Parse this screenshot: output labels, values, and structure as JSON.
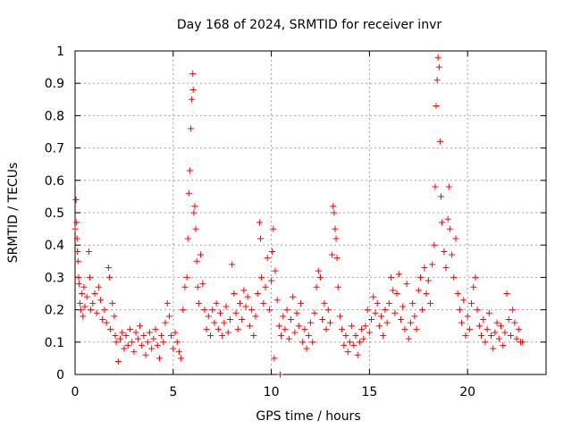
{
  "chart_data": {
    "type": "scatter",
    "title": "Day 168 of 2024, SRMTID for receiver invr",
    "xlabel": "GPS time / hours",
    "ylabel": "SRMTID / TECUs",
    "xlim": [
      0,
      24
    ],
    "ylim": [
      0,
      1
    ],
    "x_ticks": [
      0,
      5,
      10,
      15,
      20
    ],
    "y_ticks": [
      0,
      0.1,
      0.2,
      0.3,
      0.4,
      0.5,
      0.6,
      0.7,
      0.8,
      0.9,
      1
    ],
    "x_tick_labels": [
      "0",
      "5",
      "10",
      "15",
      "20"
    ],
    "y_tick_labels": [
      "0",
      "0.1",
      "0.2",
      "0.3",
      "0.4",
      "0.5",
      "0.6",
      "0.7",
      "0.8",
      "0.9",
      "1"
    ],
    "grid": true,
    "marker": "+",
    "color": "#ff0000",
    "series": [
      {
        "name": "SRMTID",
        "points": [
          [
            0.0,
            0.45
          ],
          [
            0.05,
            0.54
          ],
          [
            0.08,
            0.47
          ],
          [
            0.1,
            0.42
          ],
          [
            0.12,
            0.38
          ],
          [
            0.15,
            0.35
          ],
          [
            0.18,
            0.3
          ],
          [
            0.2,
            0.28
          ],
          [
            0.25,
            0.22
          ],
          [
            0.3,
            0.2
          ],
          [
            0.35,
            0.25
          ],
          [
            0.4,
            0.18
          ],
          [
            0.45,
            0.27
          ],
          [
            0.5,
            0.21
          ],
          [
            0.6,
            0.24
          ],
          [
            0.7,
            0.38
          ],
          [
            0.75,
            0.3
          ],
          [
            0.8,
            0.2
          ],
          [
            0.9,
            0.22
          ],
          [
            1.0,
            0.25
          ],
          [
            1.1,
            0.19
          ],
          [
            1.2,
            0.27
          ],
          [
            1.3,
            0.23
          ],
          [
            1.4,
            0.17
          ],
          [
            1.5,
            0.2
          ],
          [
            1.6,
            0.16
          ],
          [
            1.7,
            0.33
          ],
          [
            1.75,
            0.3
          ],
          [
            1.8,
            0.14
          ],
          [
            1.9,
            0.22
          ],
          [
            2.0,
            0.18
          ],
          [
            2.05,
            0.12
          ],
          [
            2.1,
            0.1
          ],
          [
            2.2,
            0.04
          ],
          [
            2.3,
            0.11
          ],
          [
            2.4,
            0.13
          ],
          [
            2.5,
            0.08
          ],
          [
            2.6,
            0.12
          ],
          [
            2.7,
            0.09
          ],
          [
            2.8,
            0.14
          ],
          [
            2.9,
            0.1
          ],
          [
            3.0,
            0.07
          ],
          [
            3.1,
            0.13
          ],
          [
            3.2,
            0.11
          ],
          [
            3.3,
            0.15
          ],
          [
            3.4,
            0.09
          ],
          [
            3.5,
            0.12
          ],
          [
            3.6,
            0.06
          ],
          [
            3.7,
            0.1
          ],
          [
            3.8,
            0.13
          ],
          [
            3.9,
            0.08
          ],
          [
            4.0,
            0.11
          ],
          [
            4.1,
            0.14
          ],
          [
            4.2,
            0.09
          ],
          [
            4.3,
            0.05
          ],
          [
            4.4,
            0.12
          ],
          [
            4.5,
            0.1
          ],
          [
            4.6,
            0.16
          ],
          [
            4.7,
            0.22
          ],
          [
            4.8,
            0.18
          ],
          [
            4.9,
            0.12
          ],
          [
            5.0,
            0.08
          ],
          [
            5.1,
            0.13
          ],
          [
            5.2,
            0.1
          ],
          [
            5.3,
            0.07
          ],
          [
            5.4,
            0.05
          ],
          [
            5.5,
            0.2
          ],
          [
            5.6,
            0.27
          ],
          [
            5.7,
            0.3
          ],
          [
            5.75,
            0.42
          ],
          [
            5.8,
            0.56
          ],
          [
            5.85,
            0.63
          ],
          [
            5.9,
            0.76
          ],
          [
            5.95,
            0.85
          ],
          [
            6.0,
            0.93
          ],
          [
            6.02,
            0.88
          ],
          [
            6.05,
            0.5
          ],
          [
            6.1,
            0.52
          ],
          [
            6.15,
            0.45
          ],
          [
            6.2,
            0.35
          ],
          [
            6.25,
            0.27
          ],
          [
            6.3,
            0.22
          ],
          [
            6.4,
            0.37
          ],
          [
            6.5,
            0.28
          ],
          [
            6.6,
            0.2
          ],
          [
            6.7,
            0.14
          ],
          [
            6.8,
            0.18
          ],
          [
            6.9,
            0.12
          ],
          [
            7.0,
            0.2
          ],
          [
            7.1,
            0.16
          ],
          [
            7.2,
            0.22
          ],
          [
            7.3,
            0.14
          ],
          [
            7.4,
            0.19
          ],
          [
            7.5,
            0.12
          ],
          [
            7.6,
            0.16
          ],
          [
            7.7,
            0.21
          ],
          [
            7.8,
            0.13
          ],
          [
            7.9,
            0.17
          ],
          [
            8.0,
            0.34
          ],
          [
            8.1,
            0.25
          ],
          [
            8.2,
            0.19
          ],
          [
            8.3,
            0.14
          ],
          [
            8.4,
            0.22
          ],
          [
            8.5,
            0.17
          ],
          [
            8.6,
            0.26
          ],
          [
            8.7,
            0.21
          ],
          [
            8.8,
            0.24
          ],
          [
            8.9,
            0.15
          ],
          [
            9.0,
            0.2
          ],
          [
            9.1,
            0.12
          ],
          [
            9.2,
            0.18
          ],
          [
            9.3,
            0.25
          ],
          [
            9.4,
            0.47
          ],
          [
            9.45,
            0.42
          ],
          [
            9.5,
            0.3
          ],
          [
            9.6,
            0.22
          ],
          [
            9.7,
            0.27
          ],
          [
            9.8,
            0.36
          ],
          [
            9.9,
            0.2
          ],
          [
            10.0,
            0.29
          ],
          [
            10.05,
            0.38
          ],
          [
            10.1,
            0.45
          ],
          [
            10.15,
            0.05
          ],
          [
            10.2,
            0.32
          ],
          [
            10.3,
            0.23
          ],
          [
            10.4,
            0.15
          ],
          [
            10.45,
            0.0
          ],
          [
            10.5,
            0.12
          ],
          [
            10.6,
            0.18
          ],
          [
            10.7,
            0.14
          ],
          [
            10.8,
            0.2
          ],
          [
            10.9,
            0.11
          ],
          [
            11.0,
            0.17
          ],
          [
            11.1,
            0.24
          ],
          [
            11.2,
            0.13
          ],
          [
            11.3,
            0.19
          ],
          [
            11.4,
            0.15
          ],
          [
            11.5,
            0.22
          ],
          [
            11.6,
            0.1
          ],
          [
            11.7,
            0.14
          ],
          [
            11.8,
            0.08
          ],
          [
            11.9,
            0.12
          ],
          [
            12.0,
            0.16
          ],
          [
            12.1,
            0.1
          ],
          [
            12.2,
            0.19
          ],
          [
            12.3,
            0.27
          ],
          [
            12.4,
            0.32
          ],
          [
            12.5,
            0.3
          ],
          [
            12.6,
            0.17
          ],
          [
            12.7,
            0.22
          ],
          [
            12.8,
            0.14
          ],
          [
            12.9,
            0.2
          ],
          [
            13.0,
            0.16
          ],
          [
            13.1,
            0.37
          ],
          [
            13.15,
            0.52
          ],
          [
            13.2,
            0.5
          ],
          [
            13.25,
            0.45
          ],
          [
            13.3,
            0.42
          ],
          [
            13.35,
            0.36
          ],
          [
            13.4,
            0.27
          ],
          [
            13.5,
            0.18
          ],
          [
            13.6,
            0.14
          ],
          [
            13.7,
            0.09
          ],
          [
            13.8,
            0.12
          ],
          [
            13.9,
            0.07
          ],
          [
            14.0,
            0.1
          ],
          [
            14.1,
            0.15
          ],
          [
            14.2,
            0.09
          ],
          [
            14.3,
            0.12
          ],
          [
            14.4,
            0.06
          ],
          [
            14.5,
            0.1
          ],
          [
            14.6,
            0.14
          ],
          [
            14.7,
            0.11
          ],
          [
            14.8,
            0.15
          ],
          [
            14.9,
            0.2
          ],
          [
            15.0,
            0.13
          ],
          [
            15.1,
            0.17
          ],
          [
            15.2,
            0.24
          ],
          [
            15.3,
            0.19
          ],
          [
            15.4,
            0.22
          ],
          [
            15.5,
            0.15
          ],
          [
            15.6,
            0.18
          ],
          [
            15.7,
            0.12
          ],
          [
            15.8,
            0.2
          ],
          [
            15.9,
            0.16
          ],
          [
            16.0,
            0.22
          ],
          [
            16.1,
            0.3
          ],
          [
            16.2,
            0.26
          ],
          [
            16.3,
            0.19
          ],
          [
            16.4,
            0.25
          ],
          [
            16.5,
            0.31
          ],
          [
            16.6,
            0.17
          ],
          [
            16.7,
            0.21
          ],
          [
            16.8,
            0.14
          ],
          [
            16.9,
            0.28
          ],
          [
            17.0,
            0.11
          ],
          [
            17.1,
            0.16
          ],
          [
            17.2,
            0.22
          ],
          [
            17.3,
            0.18
          ],
          [
            17.4,
            0.14
          ],
          [
            17.5,
            0.26
          ],
          [
            17.6,
            0.3
          ],
          [
            17.7,
            0.2
          ],
          [
            17.8,
            0.33
          ],
          [
            17.9,
            0.25
          ],
          [
            18.0,
            0.29
          ],
          [
            18.1,
            0.22
          ],
          [
            18.2,
            0.34
          ],
          [
            18.3,
            0.4
          ],
          [
            18.35,
            0.58
          ],
          [
            18.4,
            0.83
          ],
          [
            18.45,
            0.91
          ],
          [
            18.5,
            0.98
          ],
          [
            18.55,
            0.95
          ],
          [
            18.6,
            0.72
          ],
          [
            18.65,
            0.55
          ],
          [
            18.7,
            0.47
          ],
          [
            18.8,
            0.38
          ],
          [
            18.9,
            0.33
          ],
          [
            19.0,
            0.48
          ],
          [
            19.05,
            0.58
          ],
          [
            19.1,
            0.45
          ],
          [
            19.2,
            0.37
          ],
          [
            19.3,
            0.3
          ],
          [
            19.4,
            0.42
          ],
          [
            19.5,
            0.25
          ],
          [
            19.6,
            0.2
          ],
          [
            19.7,
            0.16
          ],
          [
            19.8,
            0.23
          ],
          [
            19.9,
            0.12
          ],
          [
            20.0,
            0.18
          ],
          [
            20.1,
            0.14
          ],
          [
            20.2,
            0.22
          ],
          [
            20.3,
            0.27
          ],
          [
            20.4,
            0.3
          ],
          [
            20.5,
            0.2
          ],
          [
            20.6,
            0.15
          ],
          [
            20.7,
            0.12
          ],
          [
            20.8,
            0.17
          ],
          [
            20.9,
            0.1
          ],
          [
            21.0,
            0.14
          ],
          [
            21.1,
            0.19
          ],
          [
            21.2,
            0.12
          ],
          [
            21.3,
            0.08
          ],
          [
            21.4,
            0.13
          ],
          [
            21.5,
            0.16
          ],
          [
            21.6,
            0.11
          ],
          [
            21.7,
            0.15
          ],
          [
            21.8,
            0.09
          ],
          [
            21.9,
            0.13
          ],
          [
            22.0,
            0.25
          ],
          [
            22.1,
            0.17
          ],
          [
            22.2,
            0.12
          ],
          [
            22.3,
            0.2
          ],
          [
            22.4,
            0.16
          ],
          [
            22.5,
            0.11
          ],
          [
            22.6,
            0.14
          ],
          [
            22.7,
            0.1
          ],
          [
            22.8,
            0.1
          ]
        ]
      }
    ]
  }
}
